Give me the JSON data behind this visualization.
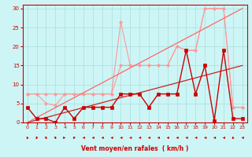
{
  "x": [
    0,
    1,
    2,
    3,
    4,
    5,
    6,
    7,
    8,
    9,
    10,
    11,
    12,
    13,
    14,
    15,
    16,
    17,
    18,
    19,
    20,
    21,
    22,
    23
  ],
  "series": [
    {
      "name": "light_upper",
      "color": "#ff9999",
      "linewidth": 0.8,
      "marker": "D",
      "markersize": 2.0,
      "y": [
        7.5,
        7.5,
        7.5,
        7.5,
        7.5,
        7.5,
        7.5,
        7.5,
        7.5,
        7.5,
        15.0,
        15.0,
        15.0,
        15.0,
        15.0,
        15.0,
        20.0,
        19.0,
        19.0,
        30.0,
        30.0,
        30.0,
        4.0,
        4.0
      ]
    },
    {
      "name": "light_spike",
      "color": "#ff9999",
      "linewidth": 0.8,
      "marker": "D",
      "markersize": 2.0,
      "y": [
        7.5,
        7.5,
        5.0,
        4.5,
        7.5,
        7.5,
        7.5,
        7.5,
        7.5,
        7.5,
        26.5,
        15.0,
        15.0,
        15.0,
        15.0,
        15.0,
        20.0,
        19.0,
        19.0,
        30.0,
        30.0,
        30.0,
        4.0,
        4.0
      ]
    },
    {
      "name": "diag_lower",
      "color": "#cc2222",
      "linewidth": 0.9,
      "marker": null,
      "y": [
        0,
        0.65,
        1.3,
        1.96,
        2.61,
        3.26,
        3.91,
        4.57,
        5.22,
        5.87,
        6.52,
        7.17,
        7.83,
        8.48,
        9.13,
        9.78,
        10.43,
        11.09,
        11.74,
        12.39,
        13.04,
        13.7,
        14.35,
        15.0
      ]
    },
    {
      "name": "diag_upper",
      "color": "#ff6666",
      "linewidth": 0.9,
      "marker": null,
      "y": [
        0,
        1.3,
        2.6,
        3.91,
        5.22,
        6.52,
        7.83,
        9.13,
        10.43,
        11.74,
        13.04,
        14.35,
        15.65,
        16.96,
        18.26,
        19.57,
        20.87,
        22.17,
        23.48,
        24.78,
        26.09,
        27.39,
        28.7,
        30.0
      ]
    },
    {
      "name": "data_line",
      "color": "#cc0000",
      "linewidth": 1.0,
      "marker": "s",
      "markersize": 2.5,
      "y": [
        4.0,
        1.0,
        1.0,
        0.0,
        4.0,
        1.0,
        4.0,
        4.0,
        4.0,
        4.0,
        7.5,
        7.5,
        7.5,
        4.0,
        7.5,
        7.5,
        7.5,
        19.0,
        7.5,
        15.0,
        0.5,
        19.0,
        1.0,
        1.0
      ]
    }
  ],
  "wind_arrows": {
    "x": [
      0,
      1,
      2,
      3,
      4,
      5,
      6,
      7,
      8,
      9,
      10,
      11,
      12,
      13,
      14,
      15,
      16,
      17,
      18,
      19,
      20,
      21,
      22,
      23
    ],
    "angles": [
      225,
      315,
      45,
      45,
      90,
      315,
      270,
      270,
      270,
      270,
      270,
      270,
      270,
      270,
      270,
      270,
      270,
      270,
      270,
      270,
      270,
      270,
      225,
      270
    ]
  },
  "xlim": [
    -0.5,
    23.5
  ],
  "ylim": [
    0,
    31
  ],
  "yticks": [
    0,
    5,
    10,
    15,
    20,
    25,
    30
  ],
  "xticks": [
    0,
    1,
    2,
    3,
    4,
    5,
    6,
    7,
    8,
    9,
    10,
    11,
    12,
    13,
    14,
    15,
    16,
    17,
    18,
    19,
    20,
    21,
    22,
    23
  ],
  "xlabel": "Vent moyen/en rafales  ( km/h )",
  "background_color": "#cdf5f5",
  "grid_color": "#aadddd",
  "axis_color": "#cc0000",
  "label_color": "#cc0000",
  "tick_color": "#cc0000"
}
